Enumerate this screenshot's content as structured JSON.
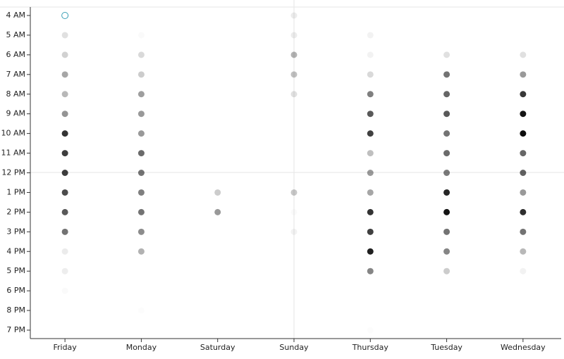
{
  "chart_data": {
    "type": "dot-matrix",
    "categories": [
      "4 AM",
      "5 AM",
      "6 AM",
      "7 AM",
      "8 AM",
      "9 AM",
      "10 AM",
      "11 AM",
      "12 PM",
      "1 PM",
      "2 PM",
      "3 PM",
      "4 PM",
      "5 PM",
      "6 PM",
      "8 PM",
      "7 PM"
    ],
    "color": "#000000",
    "highlight": [
      0,
      0
    ],
    "highlight_color": "#3a9fb5",
    "series": [
      {
        "name": "Friday",
        "values": [
          10,
          12,
          18,
          35,
          28,
          42,
          80,
          76,
          76,
          70,
          65,
          55,
          8,
          7,
          2,
          null,
          null
        ]
      },
      {
        "name": "Monday",
        "values": [
          null,
          2,
          15,
          20,
          38,
          40,
          40,
          58,
          55,
          50,
          55,
          45,
          30,
          null,
          null,
          1,
          null
        ]
      },
      {
        "name": "Saturday",
        "values": [
          null,
          null,
          null,
          null,
          null,
          null,
          null,
          null,
          null,
          20,
          40,
          null,
          null,
          null,
          null,
          null,
          null
        ]
      },
      {
        "name": "Sunday",
        "values": [
          8,
          8,
          30,
          25,
          12,
          null,
          null,
          null,
          null,
          22,
          2,
          5,
          null,
          null,
          null,
          null,
          null
        ]
      },
      {
        "name": "Thursday",
        "values": [
          null,
          5,
          5,
          15,
          50,
          65,
          75,
          25,
          40,
          35,
          80,
          75,
          88,
          48,
          null,
          null,
          1
        ]
      },
      {
        "name": "Tuesday",
        "values": [
          null,
          null,
          12,
          55,
          60,
          65,
          55,
          58,
          52,
          85,
          92,
          55,
          48,
          20,
          null,
          null,
          null
        ]
      },
      {
        "name": "Wednesday",
        "values": [
          null,
          null,
          12,
          40,
          78,
          92,
          95,
          60,
          62,
          40,
          82,
          55,
          28,
          5,
          null,
          null,
          null
        ]
      }
    ]
  }
}
